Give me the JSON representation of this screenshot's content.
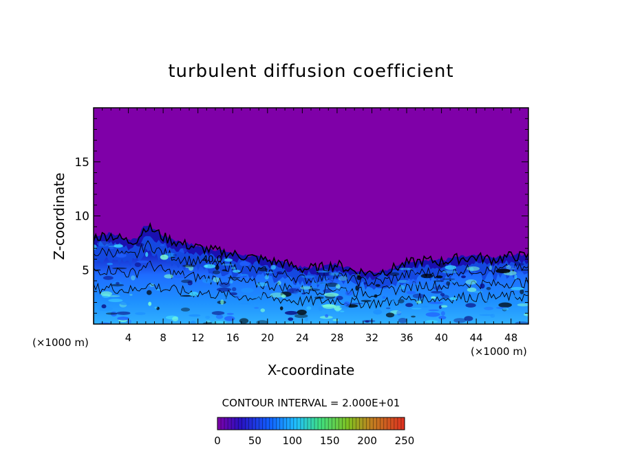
{
  "chart_data": {
    "type": "heatmap",
    "title": "turbulent diffusion coefficient",
    "xlabel": "X-coordinate",
    "ylabel": "Z-coordinate",
    "x_unit_left": "(×1000 m)",
    "x_unit_right": "(×1000 m)",
    "xlim": [
      0,
      50
    ],
    "ylim": [
      0,
      20
    ],
    "x_ticks": [
      "4",
      "8",
      "12",
      "16",
      "20",
      "24",
      "28",
      "32",
      "36",
      "40",
      "44",
      "48"
    ],
    "y_ticks": [
      "5",
      "10",
      "15"
    ],
    "contour_label": "40.0",
    "contour_interval_text": "CONTOUR INTERVAL = 2.000E+01",
    "colorbar": {
      "min": 0,
      "max": 250,
      "ticks": [
        "0",
        "50",
        "100",
        "150",
        "200",
        "250"
      ]
    },
    "background_value": 0,
    "turbulent_layer_top": [
      [
        0,
        8.2
      ],
      [
        2,
        8.4
      ],
      [
        4,
        7.8
      ],
      [
        5,
        8.0
      ],
      [
        6,
        9.2
      ],
      [
        7,
        8.8
      ],
      [
        8,
        8.2
      ],
      [
        10,
        7.6
      ],
      [
        12,
        7.2
      ],
      [
        14,
        6.9
      ],
      [
        16,
        6.6
      ],
      [
        18,
        6.3
      ],
      [
        20,
        6.0
      ],
      [
        22,
        5.7
      ],
      [
        24,
        5.2
      ],
      [
        26,
        5.3
      ],
      [
        28,
        5.6
      ],
      [
        30,
        5.0
      ],
      [
        32,
        4.8
      ],
      [
        34,
        5.1
      ],
      [
        36,
        5.7
      ],
      [
        38,
        6.0
      ],
      [
        40,
        5.9
      ],
      [
        42,
        6.2
      ],
      [
        44,
        6.3
      ],
      [
        46,
        6.1
      ],
      [
        48,
        6.4
      ],
      [
        50,
        6.4
      ]
    ],
    "colors": {
      "background": "#7f00a8",
      "low": "#1010c8",
      "mid": "#1e90ff",
      "high": "#7fffd4"
    }
  }
}
